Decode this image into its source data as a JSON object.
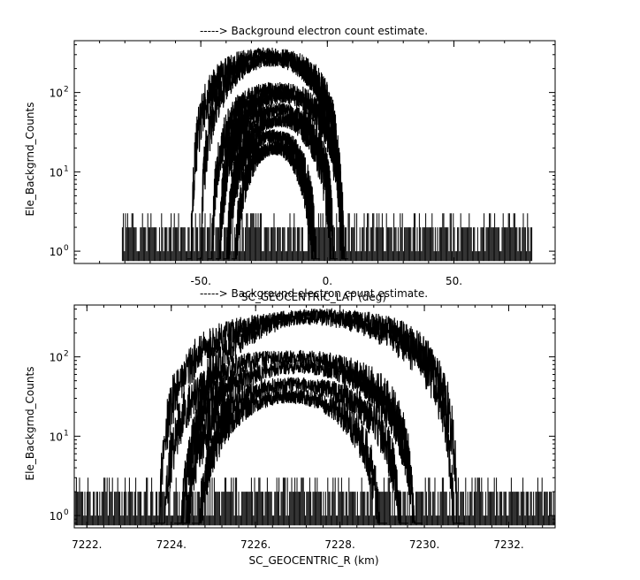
{
  "chart_data": [
    {
      "type": "line",
      "title": "-----> Background electron count estimate.",
      "xlabel": "SC_GEOCENTRIC_LAT (deg)",
      "ylabel": "Ele_Backgrnd_Counts",
      "y_scale": "log",
      "xlim": [
        -100,
        90
      ],
      "ylim": [
        0.7,
        450
      ],
      "x_ticks": [
        -50,
        0,
        50
      ],
      "x_tick_labels": [
        "-50.",
        "0.",
        "50."
      ],
      "y_ticks": [
        1,
        10,
        100
      ],
      "y_tick_base": "10",
      "y_tick_exponents": [
        "0",
        "1",
        "2"
      ],
      "grid": false,
      "noise_floor": {
        "x_range": [
          -81,
          81
        ],
        "counts": [
          1,
          2,
          3
        ]
      },
      "series": [
        {
          "center": -24,
          "peak": 300,
          "half_width": 30
        },
        {
          "center": -22,
          "peak": 260,
          "half_width": 28
        },
        {
          "center": -20,
          "peak": 110,
          "half_width": 26
        },
        {
          "center": -18,
          "peak": 90,
          "half_width": 25
        },
        {
          "center": -20,
          "peak": 60,
          "half_width": 23
        },
        {
          "center": -19,
          "peak": 45,
          "half_width": 21
        },
        {
          "center": -22,
          "peak": 28,
          "half_width": 18
        },
        {
          "center": -21,
          "peak": 20,
          "half_width": 16
        }
      ]
    },
    {
      "type": "line",
      "title": "-----> Background electron count estimate.",
      "xlabel": "SC_GEOCENTRIC_R (km)",
      "ylabel": "Ele_Backgrnd_Counts",
      "y_scale": "log",
      "xlim": [
        7221.7,
        7233.1
      ],
      "ylim": [
        0.7,
        450
      ],
      "x_ticks": [
        7222,
        7224,
        7226,
        7228,
        7230,
        7232
      ],
      "x_tick_labels": [
        "7222.",
        "7224.",
        "7226.",
        "7228.",
        "7230.",
        "7232."
      ],
      "y_ticks": [
        1,
        10,
        100
      ],
      "y_tick_base": "10",
      "y_tick_exponents": [
        "0",
        "1",
        "2"
      ],
      "grid": false,
      "noise_floor": {
        "x_range": [
          7221.7,
          7233.1
        ],
        "counts": [
          1,
          2,
          3
        ]
      },
      "series": [
        {
          "center": 7227.2,
          "peak": 310,
          "half_width": 3.5
        },
        {
          "center": 7227.6,
          "peak": 330,
          "half_width": 3.2
        },
        {
          "center": 7226.8,
          "peak": 100,
          "half_width": 3.0
        },
        {
          "center": 7227.0,
          "peak": 75,
          "half_width": 2.8
        },
        {
          "center": 7226.9,
          "peak": 45,
          "half_width": 2.6
        },
        {
          "center": 7226.8,
          "peak": 32,
          "half_width": 2.2
        }
      ]
    }
  ]
}
